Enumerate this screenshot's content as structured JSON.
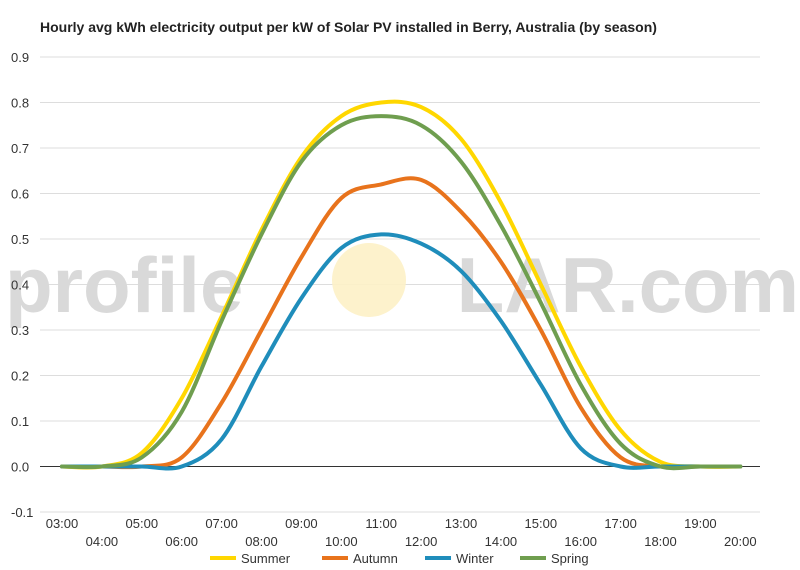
{
  "chart_data": {
    "type": "line",
    "title": "Hourly avg kWh electricity output per kW of Solar PV installed in Berry, Australia (by season)",
    "xlabel": "",
    "ylabel": "",
    "x": [
      "03:00",
      "04:00",
      "05:00",
      "06:00",
      "07:00",
      "08:00",
      "09:00",
      "10:00",
      "11:00",
      "12:00",
      "13:00",
      "14:00",
      "15:00",
      "16:00",
      "17:00",
      "18:00",
      "19:00",
      "20:00"
    ],
    "ylim": [
      -0.1,
      0.9
    ],
    "yticks": [
      -0.1,
      0.0,
      0.1,
      0.2,
      0.3,
      0.4,
      0.5,
      0.6,
      0.7,
      0.8,
      0.9
    ],
    "grid": true,
    "legend": "bottom",
    "series": [
      {
        "name": "Summer",
        "color": "#ffd700",
        "values": [
          0.0,
          0.0,
          0.03,
          0.15,
          0.33,
          0.52,
          0.68,
          0.77,
          0.8,
          0.79,
          0.72,
          0.58,
          0.4,
          0.22,
          0.08,
          0.01,
          0.0,
          0.0
        ]
      },
      {
        "name": "Autumn",
        "color": "#e8731c",
        "values": [
          0.0,
          0.0,
          0.0,
          0.02,
          0.14,
          0.3,
          0.46,
          0.59,
          0.62,
          0.63,
          0.56,
          0.45,
          0.3,
          0.13,
          0.02,
          0.0,
          0.0,
          0.0
        ]
      },
      {
        "name": "Winter",
        "color": "#1f8dbb",
        "values": [
          0.0,
          0.0,
          0.0,
          0.0,
          0.06,
          0.22,
          0.37,
          0.48,
          0.51,
          0.49,
          0.43,
          0.32,
          0.18,
          0.04,
          0.0,
          0.0,
          0.0,
          0.0
        ]
      },
      {
        "name": "Spring",
        "color": "#6f9e4f",
        "values": [
          0.0,
          0.0,
          0.02,
          0.12,
          0.32,
          0.51,
          0.67,
          0.75,
          0.77,
          0.75,
          0.67,
          0.53,
          0.36,
          0.18,
          0.05,
          0.0,
          0.0,
          0.0
        ]
      }
    ]
  },
  "watermark": {
    "text_before": "profile",
    "text_after": "LAR.com"
  }
}
